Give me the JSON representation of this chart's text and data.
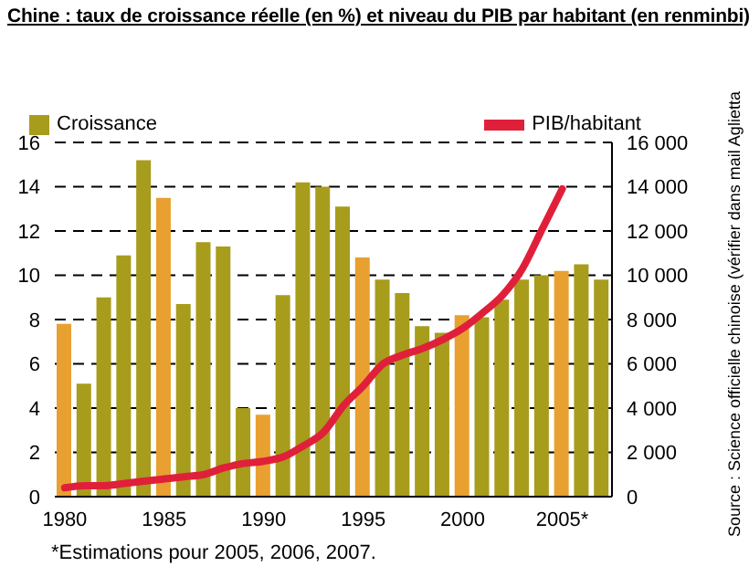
{
  "chart_data": {
    "type": "bar",
    "title": "Chine : taux de croissance réelle (en %) et niveau du PIB par habitant (en renminbi)",
    "categories": [
      "1980",
      null,
      null,
      null,
      null,
      "1985",
      null,
      null,
      null,
      null,
      "1990",
      null,
      null,
      null,
      null,
      "1995",
      null,
      null,
      null,
      null,
      "2000",
      null,
      null,
      null,
      null,
      "2005*",
      null,
      null
    ],
    "series": [
      {
        "name": "Croissance",
        "color": "#a89c1c",
        "colors": [
          "#e8a030",
          "#a89c1c",
          "#a89c1c",
          "#a89c1c",
          "#a89c1c",
          "#e8a030",
          "#a89c1c",
          "#a89c1c",
          "#a89c1c",
          "#a89c1c",
          "#e8a030",
          "#a89c1c",
          "#a89c1c",
          "#a89c1c",
          "#a89c1c",
          "#e8a030",
          "#a89c1c",
          "#a89c1c",
          "#a89c1c",
          "#a89c1c",
          "#e8a030",
          "#a89c1c",
          "#a89c1c",
          "#a89c1c",
          "#a89c1c",
          "#e8a030",
          "#a89c1c",
          "#a89c1c"
        ],
        "values": [
          7.8,
          5.1,
          9.0,
          10.9,
          15.2,
          13.5,
          8.7,
          11.5,
          11.3,
          4.0,
          3.7,
          9.1,
          14.2,
          14.0,
          13.1,
          10.8,
          9.8,
          9.2,
          7.7,
          7.4,
          8.2,
          8.1,
          8.9,
          9.8,
          10.0,
          10.2,
          10.5,
          9.8
        ]
      },
      {
        "name": "PIB/habitant",
        "type": "line",
        "axis": "y2",
        "color": "#e0203a",
        "values": [
          400,
          500,
          500,
          600,
          700,
          800,
          900,
          1000,
          1300,
          1500,
          1600,
          1800,
          2300,
          2900,
          4100,
          5000,
          6000,
          6400,
          6700,
          7100,
          7600,
          8300,
          9100,
          10300,
          12100,
          13900,
          null,
          null
        ]
      }
    ],
    "ylim": [
      0,
      16
    ],
    "yticks": [
      0,
      2,
      4,
      6,
      8,
      10,
      12,
      14,
      16
    ],
    "y2lim": [
      0,
      16000
    ],
    "y2ticks": [
      {
        "value": 0,
        "label": "0"
      },
      {
        "value": 2000,
        "label": "2 000"
      },
      {
        "value": 4000,
        "label": "4 000"
      },
      {
        "value": 6000,
        "label": "6 000"
      },
      {
        "value": 8000,
        "label": "8 000"
      },
      {
        "value": 10000,
        "label": "10 000"
      },
      {
        "value": 12000,
        "label": "12 000"
      },
      {
        "value": 14000,
        "label": "14 000"
      },
      {
        "value": 16000,
        "label": "16 000"
      }
    ],
    "grid": "y",
    "legend": "top",
    "line_style": "solid",
    "annotations": [
      "*Estimations pour 2005, 2006, 2007.",
      "Source : Science officielle chinoise (vérifier dans mail Aglietta"
    ]
  }
}
